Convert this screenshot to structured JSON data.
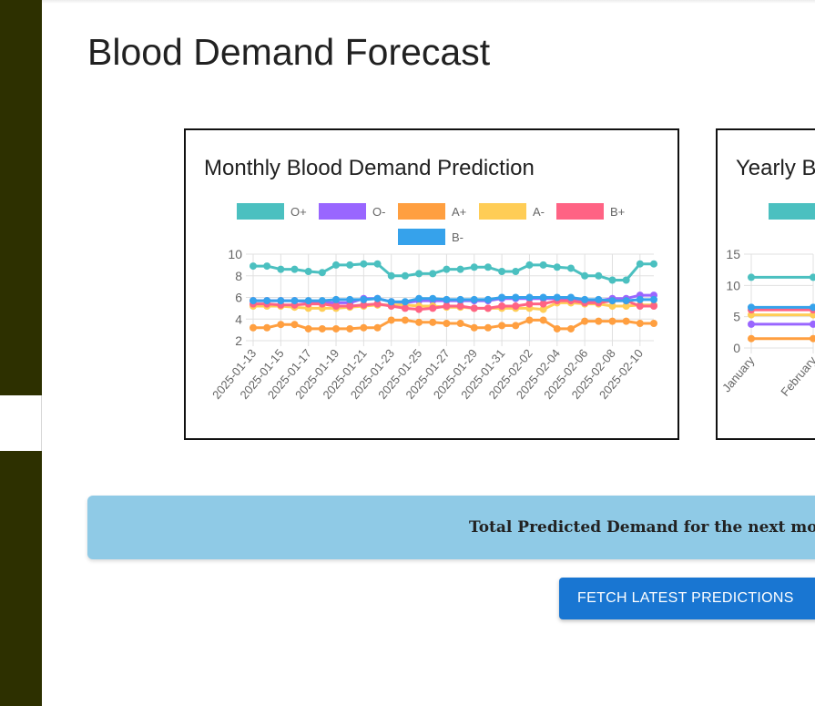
{
  "page": {
    "title": "Blood Demand Forecast"
  },
  "monthly_card": {
    "title": "Monthly Blood Demand Prediction"
  },
  "yearly_card": {
    "title": "Yearly B"
  },
  "summary": {
    "text": "Total Predicted Demand for the next mo"
  },
  "actions": {
    "fetch_label": "FETCH LATEST PREDICTIONS"
  },
  "colors": {
    "sidebar": "#2d3000",
    "banner": "#8fcae6",
    "button": "#1976d2"
  },
  "chart_data": [
    {
      "type": "line",
      "title": "Monthly Blood Demand Prediction",
      "xlabel": "",
      "ylabel": "",
      "ylim": [
        2,
        10
      ],
      "yticks": [
        2,
        4,
        6,
        8,
        10
      ],
      "grid": true,
      "legend": "top",
      "x": [
        "2025-01-13",
        "2025-01-14",
        "2025-01-15",
        "2025-01-16",
        "2025-01-17",
        "2025-01-18",
        "2025-01-19",
        "2025-01-20",
        "2025-01-21",
        "2025-01-22",
        "2025-01-23",
        "2025-01-24",
        "2025-01-25",
        "2025-01-26",
        "2025-01-27",
        "2025-01-28",
        "2025-01-29",
        "2025-01-30",
        "2025-01-31",
        "2025-02-01",
        "2025-02-02",
        "2025-02-03",
        "2025-02-04",
        "2025-02-05",
        "2025-02-06",
        "2025-02-07",
        "2025-02-08",
        "2025-02-09",
        "2025-02-10",
        "2025-02-11"
      ],
      "tick_labels": [
        "2025-01-13",
        "2025-01-15",
        "2025-01-17",
        "2025-01-19",
        "2025-01-21",
        "2025-01-23",
        "2025-01-25",
        "2025-01-27",
        "2025-01-29",
        "2025-01-31",
        "2025-02-02",
        "2025-02-04",
        "2025-02-06",
        "2025-02-08",
        "2025-02-10"
      ],
      "series": [
        {
          "name": "O+",
          "color": "#4bc0c0",
          "values": [
            8.9,
            8.9,
            8.6,
            8.6,
            8.4,
            8.3,
            9.0,
            9.0,
            9.1,
            9.1,
            8.0,
            8.0,
            8.2,
            8.2,
            8.6,
            8.6,
            8.8,
            8.8,
            8.4,
            8.4,
            9.0,
            9.0,
            8.8,
            8.7,
            8.0,
            8.0,
            7.6,
            7.6,
            9.1,
            9.1
          ]
        },
        {
          "name": "O-",
          "color": "#9966ff",
          "values": [
            5.7,
            5.7,
            5.7,
            5.7,
            5.6,
            5.5,
            5.5,
            5.5,
            5.9,
            5.9,
            5.6,
            5.5,
            5.7,
            5.7,
            5.7,
            5.7,
            5.7,
            5.7,
            5.9,
            5.9,
            5.9,
            5.9,
            5.9,
            5.9,
            5.7,
            5.7,
            5.9,
            5.9,
            6.2,
            6.2
          ]
        },
        {
          "name": "A+",
          "color": "#ff9f40",
          "values": [
            3.2,
            3.2,
            3.5,
            3.5,
            3.1,
            3.1,
            3.1,
            3.1,
            3.2,
            3.2,
            3.9,
            3.9,
            3.7,
            3.7,
            3.6,
            3.6,
            3.2,
            3.2,
            3.4,
            3.4,
            3.9,
            3.9,
            3.1,
            3.1,
            3.8,
            3.8,
            3.8,
            3.8,
            3.6,
            3.6
          ]
        },
        {
          "name": "A-",
          "color": "#ffcd56",
          "values": [
            5.2,
            5.2,
            5.2,
            5.1,
            5.0,
            5.0,
            5.0,
            5.1,
            5.2,
            5.3,
            5.3,
            5.3,
            5.2,
            5.2,
            5.1,
            5.1,
            5.0,
            5.0,
            5.0,
            5.0,
            5.0,
            4.9,
            5.5,
            5.5,
            5.4,
            5.4,
            5.2,
            5.2,
            5.3,
            5.3
          ]
        },
        {
          "name": "B+",
          "color": "#ff6384",
          "values": [
            5.4,
            5.4,
            5.3,
            5.3,
            5.4,
            5.4,
            5.2,
            5.2,
            5.3,
            5.4,
            5.2,
            5.0,
            4.9,
            5.0,
            5.2,
            5.2,
            5.0,
            5.0,
            5.2,
            5.2,
            5.4,
            5.4,
            5.7,
            5.7,
            5.5,
            5.5,
            5.7,
            5.7,
            5.2,
            5.2
          ]
        },
        {
          "name": "B-",
          "color": "#36a2eb",
          "values": [
            5.7,
            5.7,
            5.7,
            5.7,
            5.7,
            5.7,
            5.8,
            5.8,
            5.8,
            5.9,
            5.6,
            5.6,
            5.9,
            5.9,
            5.8,
            5.8,
            5.8,
            5.8,
            6.0,
            6.0,
            6.0,
            6.0,
            6.0,
            6.0,
            5.8,
            5.8,
            5.7,
            5.7,
            5.8,
            5.8
          ]
        }
      ]
    },
    {
      "type": "line",
      "title": "Yearly B",
      "xlabel": "",
      "ylabel": "",
      "ylim": [
        0,
        15
      ],
      "yticks": [
        0,
        5,
        10,
        15
      ],
      "grid": true,
      "legend": "top",
      "x": [
        "January",
        "February"
      ],
      "series": [
        {
          "color": "#4bc0c0",
          "values": [
            11.3,
            11.3
          ]
        },
        {
          "color": "#9966ff",
          "values": [
            3.8,
            3.8
          ]
        },
        {
          "color": "#ff9f40",
          "values": [
            1.5,
            1.5
          ]
        },
        {
          "color": "#ffcd56",
          "values": [
            5.3,
            5.3
          ]
        },
        {
          "color": "#ff6384",
          "values": [
            6.1,
            6.1
          ]
        },
        {
          "color": "#36a2eb",
          "values": [
            6.5,
            6.5
          ]
        }
      ]
    }
  ]
}
